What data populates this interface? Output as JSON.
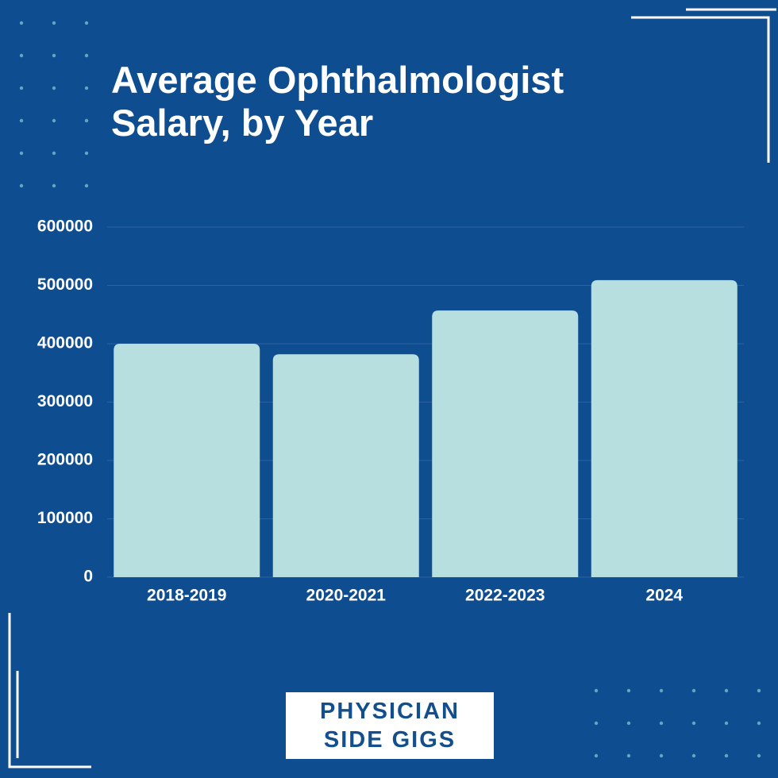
{
  "chart_data": {
    "type": "bar",
    "title": "Average Ophthalmologist Salary, by Year",
    "categories": [
      "2018-2019",
      "2020-2021",
      "2022-2023",
      "2024"
    ],
    "values": [
      400000,
      382000,
      457000,
      509000
    ],
    "color": "#b8dfdf",
    "ylim": [
      0,
      600000
    ],
    "yticks": [
      0,
      100000,
      200000,
      300000,
      400000,
      500000,
      600000
    ],
    "grid": true
  },
  "brand": {
    "lines": [
      "PHYSICIAN",
      "SIDE GIGS"
    ]
  }
}
